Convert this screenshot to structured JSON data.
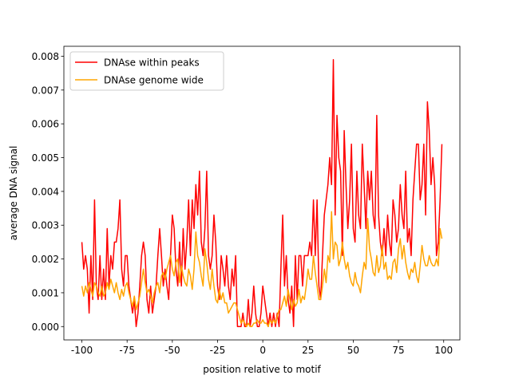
{
  "chart_data": {
    "type": "line",
    "xlabel": "position relative to motif",
    "ylabel": "average DNA signal",
    "x": [
      -100,
      -99,
      -98,
      -97,
      -96,
      -95,
      -94,
      -93,
      -92,
      -91,
      -90,
      -89,
      -88,
      -87,
      -86,
      -85,
      -84,
      -83,
      -82,
      -81,
      -80,
      -79,
      -78,
      -77,
      -76,
      -75,
      -74,
      -73,
      -72,
      -71,
      -70,
      -69,
      -68,
      -67,
      -66,
      -65,
      -64,
      -63,
      -62,
      -61,
      -60,
      -59,
      -58,
      -57,
      -56,
      -55,
      -54,
      -53,
      -52,
      -51,
      -50,
      -49,
      -48,
      -47,
      -46,
      -45,
      -44,
      -43,
      -42,
      -41,
      -40,
      -39,
      -38,
      -37,
      -36,
      -35,
      -34,
      -33,
      -32,
      -31,
      -30,
      -29,
      -28,
      -27,
      -26,
      -25,
      -24,
      -23,
      -22,
      -21,
      -20,
      -19,
      -18,
      -17,
      -16,
      -15,
      -14,
      -13,
      -12,
      -11,
      -10,
      -9,
      -8,
      -7,
      -6,
      -5,
      -4,
      -3,
      -2,
      -1,
      0,
      1,
      2,
      3,
      4,
      5,
      6,
      7,
      8,
      9,
      10,
      11,
      12,
      13,
      14,
      15,
      16,
      17,
      18,
      19,
      20,
      21,
      22,
      23,
      24,
      25,
      26,
      27,
      28,
      29,
      30,
      31,
      32,
      33,
      34,
      35,
      36,
      37,
      38,
      39,
      40,
      41,
      42,
      43,
      44,
      45,
      46,
      47,
      48,
      49,
      50,
      51,
      52,
      53,
      54,
      55,
      56,
      57,
      58,
      59,
      60,
      61,
      62,
      63,
      64,
      65,
      66,
      67,
      68,
      69,
      70,
      71,
      72,
      73,
      74,
      75,
      76,
      77,
      78,
      79,
      80,
      81,
      82,
      83,
      84,
      85,
      86,
      87,
      88,
      89,
      90,
      91,
      92,
      93,
      94,
      95,
      96,
      97,
      98,
      99
    ],
    "series": [
      {
        "name": "DNAse within peaks",
        "color": "#ff0000",
        "values": [
          0.0025,
          0.0017,
          0.0021,
          0.0017,
          0.0004,
          0.0021,
          0.0008,
          0.00375,
          0.0012,
          0.0008,
          0.0021,
          0.0008,
          0.0017,
          0.0008,
          0.0029,
          0.0012,
          0.0021,
          0.0017,
          0.0025,
          0.0025,
          0.0029,
          0.00375,
          0.0017,
          0.0012,
          0.0021,
          0.0021,
          0.0012,
          0.0008,
          0.0004,
          0.0008,
          0,
          0.0004,
          0.0012,
          0.0021,
          0.0025,
          0.0021,
          0.0008,
          0.0004,
          0.0012,
          0.0004,
          0.0008,
          0.0012,
          0.0021,
          0.0029,
          0.0021,
          0.0012,
          0.0017,
          0.0012,
          0.0008,
          0.0021,
          0.0033,
          0.0029,
          0.0017,
          0.0012,
          0.0025,
          0.0012,
          0.0029,
          0.0017,
          0.0025,
          0.00375,
          0.0021,
          0.00375,
          0.0029,
          0.0042,
          0.0033,
          0.0046,
          0.0025,
          0.0021,
          0.0029,
          0.0046,
          0.0021,
          0.0017,
          0.0021,
          0.0033,
          0.0025,
          0.0012,
          0.0008,
          0.0021,
          0.0017,
          0.0012,
          0.0021,
          0.0012,
          0.0008,
          0.0017,
          0.0012,
          0.0021,
          0,
          0,
          0,
          0.0004,
          0,
          0,
          0.0008,
          0,
          0.0004,
          0.0012,
          0.0004,
          0,
          0,
          0.0004,
          0.0012,
          0.0008,
          0.0004,
          0,
          0.0004,
          0,
          0.0004,
          0,
          0.0004,
          0,
          0.0017,
          0.0033,
          0.0012,
          0.0021,
          0.0008,
          0.0004,
          0.0012,
          0,
          0.0021,
          0.0008,
          0.0021,
          0.0021,
          0.0012,
          0.0021,
          0.0021,
          0.0021,
          0.0025,
          0.0021,
          0.00375,
          0.0021,
          0.00375,
          0.0012,
          0.0008,
          0.0021,
          0.0033,
          0.00375,
          0.0042,
          0.005,
          0.0042,
          0.0079,
          0.0033,
          0.00625,
          0.005,
          0.0046,
          0.0021,
          0.0058,
          0.0042,
          0.0029,
          0.00375,
          0.0054,
          0.0029,
          0.0025,
          0.0046,
          0.0033,
          0.0029,
          0.0054,
          0.0042,
          0.0029,
          0.0046,
          0.00375,
          0.0046,
          0.0033,
          0.0029,
          0.00625,
          0.0033,
          0.0025,
          0.0021,
          0.0029,
          0.0021,
          0.0033,
          0.0025,
          0.0021,
          0.00375,
          0.0033,
          0.0025,
          0.0029,
          0.0042,
          0.0033,
          0.0029,
          0.0046,
          0.0025,
          0.0029,
          0.0021,
          0.00375,
          0.0046,
          0.0054,
          0.0054,
          0.00375,
          0.0042,
          0.0054,
          0.0033,
          0.00665,
          0.0058,
          0.0042,
          0.005,
          0.0042,
          0.0021,
          0.0025,
          0.00375,
          0.0054
        ]
      },
      {
        "name": "DNAse genome wide",
        "color": "#ffa500",
        "values": [
          0.0012,
          0.0009,
          0.0012,
          0.001,
          0.0013,
          0.0011,
          0.0009,
          0.0013,
          0.0012,
          0.001,
          0.0009,
          0.0012,
          0.0009,
          0.001,
          0.0013,
          0.0011,
          0.0014,
          0.0012,
          0.001,
          0.0013,
          0.001,
          0.0008,
          0.0011,
          0.0009,
          0.0012,
          0.0013,
          0.001,
          0.0008,
          0.0006,
          0.0009,
          0.0005,
          0.0007,
          0.0009,
          0.0013,
          0.0017,
          0.0013,
          0.001,
          0.0011,
          0.0009,
          0.0007,
          0.001,
          0.0012,
          0.0013,
          0.001,
          0.0015,
          0.0016,
          0.0014,
          0.0017,
          0.0019,
          0.0021,
          0.0017,
          0.0015,
          0.0019,
          0.002,
          0.0013,
          0.0018,
          0.0015,
          0.0013,
          0.0012,
          0.0017,
          0.0015,
          0.0011,
          0.0017,
          0.0028,
          0.0021,
          0.0019,
          0.0015,
          0.0012,
          0.0023,
          0.0019,
          0.0014,
          0.0011,
          0.0017,
          0.0012,
          0.0008,
          0.0007,
          0.0011,
          0.0008,
          0.001,
          0.0007,
          0.0007,
          0.0004,
          0.0005,
          0.0006,
          0.0007,
          0.0007,
          0.0005,
          0.0003,
          0.0001,
          0.0002,
          0.0001,
          0,
          0.0001,
          0,
          0,
          0.0001,
          0.0001,
          0.0002,
          0.0001,
          0.0001,
          0.0002,
          0.0001,
          0.0001,
          0,
          0.0002,
          0.0001,
          0.0002,
          0.0001,
          0.0003,
          0.0005,
          0.0005,
          0.0007,
          0.0009,
          0.0006,
          0.0011,
          0.0008,
          0.0005,
          0.0008,
          0.0006,
          0.0007,
          0.0011,
          0.0007,
          0.0009,
          0.0008,
          0.0012,
          0.0017,
          0.0014,
          0.0014,
          0.0021,
          0.0016,
          0.0012,
          0.0008,
          0.0008,
          0.0012,
          0.0017,
          0.0013,
          0.0021,
          0.0019,
          0.0034,
          0.002,
          0.0025,
          0.0024,
          0.0018,
          0.002,
          0.0025,
          0.002,
          0.0017,
          0.0019,
          0.0015,
          0.0013,
          0.0012,
          0.0016,
          0.0013,
          0.0012,
          0.001,
          0.0015,
          0.0019,
          0.0017,
          0.0032,
          0.0023,
          0.002,
          0.0016,
          0.0015,
          0.0021,
          0.0016,
          0.0018,
          0.0024,
          0.0017,
          0.0019,
          0.0014,
          0.0015,
          0.0014,
          0.0019,
          0.002,
          0.0016,
          0.0023,
          0.0026,
          0.002,
          0.0024,
          0.0019,
          0.0016,
          0.0014,
          0.0017,
          0.0016,
          0.0019,
          0.0015,
          0.0013,
          0.0018,
          0.0024,
          0.002,
          0.0018,
          0.0018,
          0.0021,
          0.0019,
          0.0018,
          0.0018,
          0.002,
          0.0018,
          0.0029,
          0.0026
        ]
      }
    ],
    "xlim": [
      -109.95,
      108.95
    ],
    "ylim": [
      -0.000395,
      0.008295
    ],
    "xticks": [
      -100,
      -75,
      -50,
      -25,
      0,
      25,
      50,
      75,
      100
    ],
    "yticks": [
      {
        "value": 0,
        "label": "0.000"
      },
      0.001,
      0.002,
      0.003,
      0.004,
      0.005,
      0.006,
      0.007,
      0.008
    ],
    "legend": "upper left"
  }
}
